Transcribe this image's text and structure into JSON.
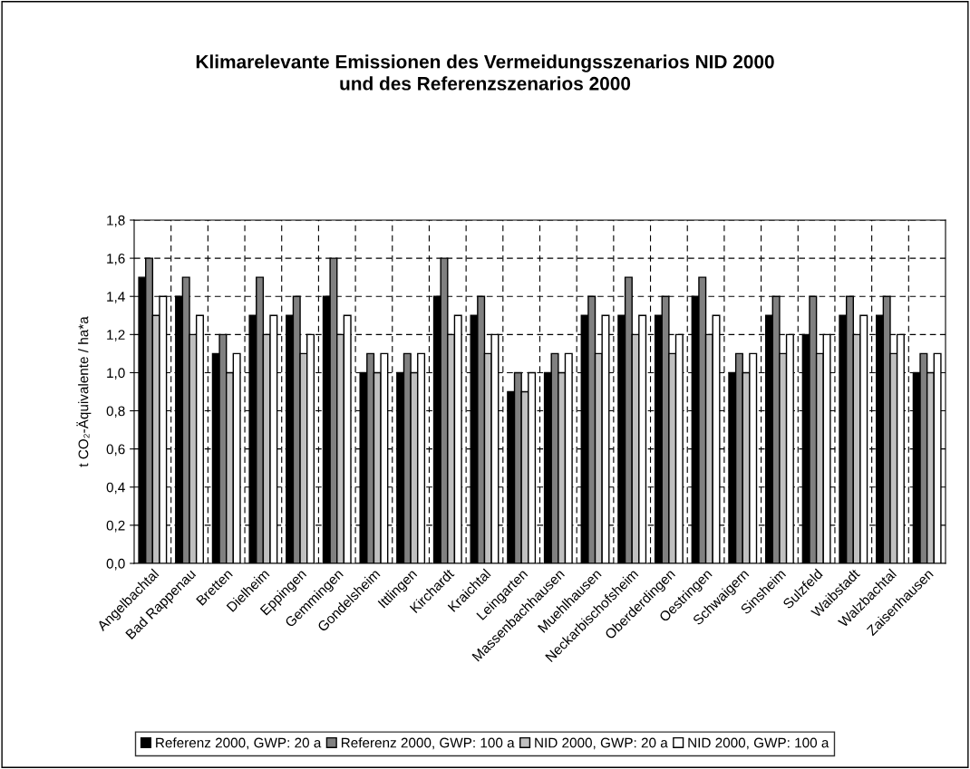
{
  "chart_data": {
    "type": "bar",
    "title": "Klimarelevante Emissionen des Vermeidungsszenarios NID 2000\nund des Referenzszenarios 2000",
    "ylabel": "t CO₂-Äquivalente / ha*a",
    "categories": [
      "Angelbachtal",
      "Bad Rappenau",
      "Bretten",
      "Dielheim",
      "Eppingen",
      "Gemmingen",
      "Gondelsheim",
      "Ittlingen",
      "Kirchardt",
      "Kraichtal",
      "Leingarten",
      "Massenbachhausen",
      "Muehlhausen",
      "Neckarbischofsheim",
      "Oberderdingen",
      "Oestringen",
      "Schwaigern",
      "Sinsheim",
      "Sulzfeld",
      "Waibstadt",
      "Walzbachtal",
      "Zaisenhausen"
    ],
    "series": [
      {
        "name": "Referenz 2000, GWP: 20 a",
        "color": "#000000",
        "values": [
          1.5,
          1.4,
          1.1,
          1.3,
          1.3,
          1.4,
          1.0,
          1.0,
          1.4,
          1.3,
          0.9,
          1.0,
          1.3,
          1.3,
          1.3,
          1.4,
          1.0,
          1.3,
          1.2,
          1.3,
          1.3,
          1.0
        ]
      },
      {
        "name": "Referenz 2000, GWP: 100 a",
        "color": "#808080",
        "values": [
          1.6,
          1.5,
          1.2,
          1.5,
          1.4,
          1.6,
          1.1,
          1.1,
          1.6,
          1.4,
          1.0,
          1.1,
          1.4,
          1.5,
          1.4,
          1.5,
          1.1,
          1.4,
          1.4,
          1.4,
          1.4,
          1.1
        ]
      },
      {
        "name": "NID 2000, GWP: 20 a",
        "color": "#c0c0c0",
        "values": [
          1.3,
          1.2,
          1.0,
          1.2,
          1.1,
          1.2,
          1.0,
          1.0,
          1.2,
          1.1,
          0.9,
          1.0,
          1.1,
          1.2,
          1.1,
          1.2,
          1.0,
          1.1,
          1.1,
          1.2,
          1.1,
          1.0
        ]
      },
      {
        "name": "NID 2000, GWP: 100 a",
        "color": "#ffffff",
        "values": [
          1.4,
          1.3,
          1.1,
          1.3,
          1.2,
          1.3,
          1.1,
          1.1,
          1.3,
          1.2,
          1.0,
          1.1,
          1.3,
          1.3,
          1.2,
          1.3,
          1.1,
          1.2,
          1.2,
          1.3,
          1.2,
          1.1
        ]
      }
    ],
    "ylim": [
      0,
      1.8
    ],
    "yticks": [
      {
        "value": 0,
        "label": "0,0"
      },
      {
        "value": 0.2,
        "label": "0,2"
      },
      {
        "value": 0.4,
        "label": "0,4"
      },
      {
        "value": 0.6,
        "label": "0,6"
      },
      {
        "value": 0.8,
        "label": "0,8"
      },
      {
        "value": 1.0,
        "label": "1,0"
      },
      {
        "value": 1.2,
        "label": "1,2"
      },
      {
        "value": 1.4,
        "label": "1,4"
      },
      {
        "value": 1.6,
        "label": "1,6"
      },
      {
        "value": 1.8,
        "label": "1,8"
      }
    ],
    "grid": true,
    "legend": "bottom"
  }
}
